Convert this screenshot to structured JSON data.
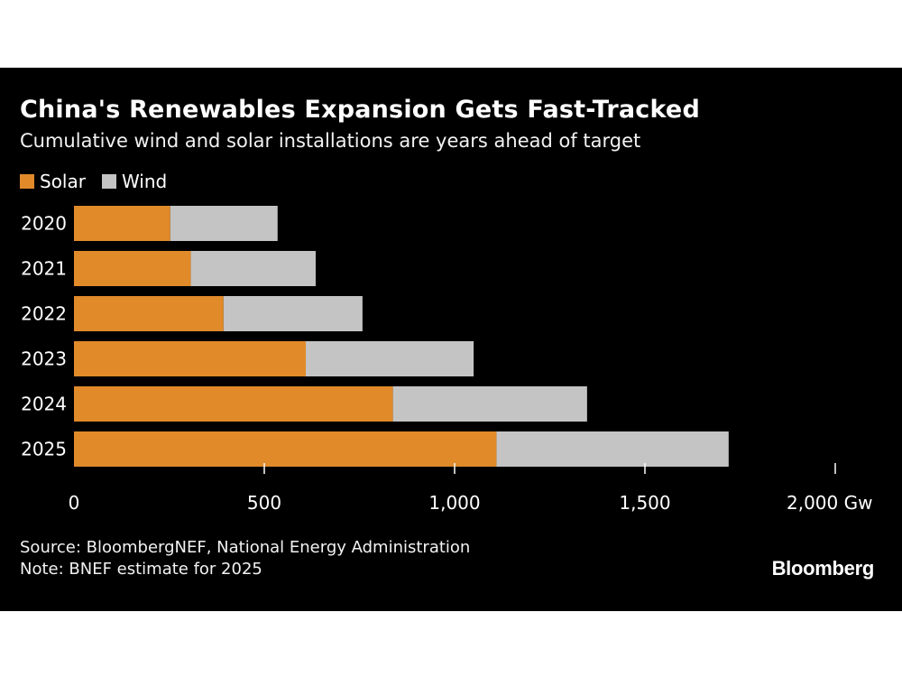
{
  "header": {
    "title": "China's Renewables Expansion Gets Fast-Tracked",
    "subtitle": "Cumulative wind and solar installations are years ahead of target"
  },
  "footer": {
    "source": "Source: BloombergNEF, National Energy Administration",
    "note": "Note: BNEF estimate for 2025",
    "brand": "Bloomberg"
  },
  "colors": {
    "solar": "#e08a2a",
    "wind": "#c4c4c4",
    "background": "#000000",
    "text": "#ffffff"
  },
  "chart_data": {
    "type": "bar",
    "orientation": "horizontal",
    "stacked": true,
    "title": "China's Renewables Expansion Gets Fast-Tracked",
    "subtitle": "Cumulative wind and solar installations are years ahead of target",
    "categories": [
      "2020",
      "2021",
      "2022",
      "2023",
      "2024",
      "2025"
    ],
    "series": [
      {
        "name": "Solar",
        "color": "#e08a2a",
        "values": [
          253,
          307,
          393,
          609,
          838,
          1110
        ]
      },
      {
        "name": "Wind",
        "color": "#c4c4c4",
        "values": [
          282,
          328,
          365,
          441,
          510,
          610
        ]
      }
    ],
    "xlim": [
      0,
      2000
    ],
    "xticks": [
      0,
      500,
      1000,
      1500,
      2000
    ],
    "xtick_labels": [
      "0",
      "500",
      "1,000",
      "1,500",
      "2,000 Gw"
    ],
    "unit": "Gw",
    "legend_position": "top-left",
    "grid": false
  }
}
